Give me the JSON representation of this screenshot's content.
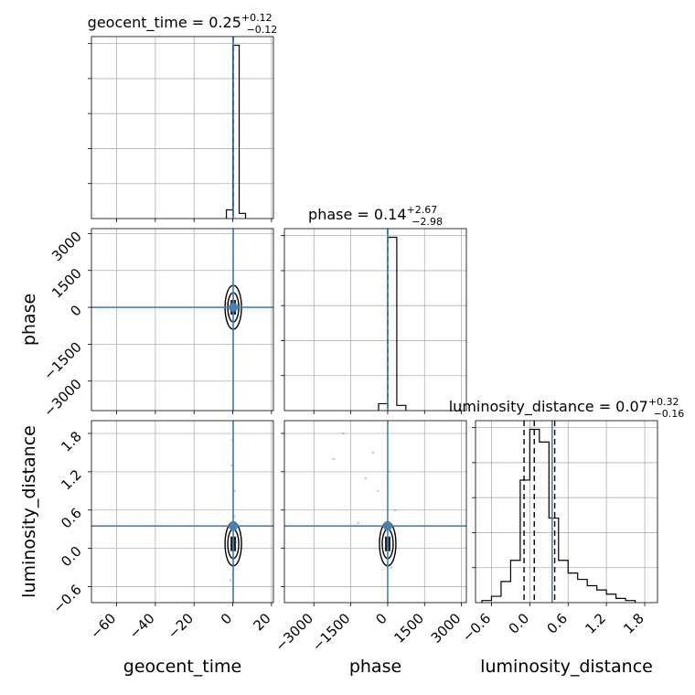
{
  "chart_data": {
    "type": "scatter",
    "variant": "corner-plot",
    "parameters": [
      {
        "name": "geocent_time",
        "axis_label": "geocent_time",
        "median": 0.25,
        "plus": 0.12,
        "minus": 0.12,
        "title": {
          "main": "geocent_time = 0.25",
          "sup": "+0.12",
          "sub": "−0.12"
        },
        "range": [
          -73,
          21
        ],
        "ticks": [
          -60,
          -40,
          -20,
          0,
          20
        ],
        "tick_labels": [
          "−60",
          "−40",
          "−20",
          "0",
          "20"
        ],
        "injected_value": 0.25,
        "quantiles": [
          0.13,
          0.37
        ],
        "hist_bins": [
          -3.3,
          0,
          3.3,
          6.6
        ],
        "hist_counts": [
          0.05,
          1.0,
          0.03
        ]
      },
      {
        "name": "phase",
        "axis_label": "phase",
        "median": 0.14,
        "plus": 2.67,
        "minus": 2.98,
        "title": {
          "main": "phase = 0.14",
          "sup": "+2.67",
          "sub": "−2.98"
        },
        "range": [
          -4200,
          3200
        ],
        "ticks": [
          -3000,
          -1500,
          0,
          1500,
          3000
        ],
        "tick_labels": [
          "−3000",
          "−1500",
          "0",
          "1500",
          "3000"
        ],
        "injected_value": 0.0,
        "quantiles": [
          -2.84,
          2.81
        ],
        "hist_bins": [
          -370,
          0,
          370,
          740
        ],
        "hist_counts": [
          0.04,
          1.0,
          0.03
        ]
      },
      {
        "name": "luminosity_distance",
        "axis_label": "luminosity_distance",
        "median": 0.07,
        "plus": 0.32,
        "minus": 0.16,
        "title": {
          "main": "luminosity_distance = 0.07",
          "sup": "+0.32",
          "sub": "−0.16"
        },
        "range": [
          -0.85,
          2.0
        ],
        "ticks": [
          -0.6,
          0.0,
          0.6,
          1.2,
          1.8
        ],
        "tick_labels": [
          "−0.6",
          "0.0",
          "0.6",
          "1.2",
          "1.8"
        ],
        "injected_value": 0.35,
        "quantiles": [
          -0.09,
          0.07,
          0.39
        ],
        "hist_bins": [
          -0.75,
          -0.6,
          -0.45,
          -0.3,
          -0.15,
          0.0,
          0.15,
          0.3,
          0.45,
          0.6,
          0.75,
          0.9,
          1.05,
          1.2,
          1.35,
          1.5,
          1.65
        ],
        "hist_counts": [
          0.01,
          0.03,
          0.1,
          0.2,
          0.58,
          0.82,
          0.76,
          0.4,
          0.2,
          0.14,
          0.11,
          0.08,
          0.06,
          0.04,
          0.02,
          0.01
        ]
      }
    ],
    "joint_scatter": {
      "phase_vs_geocent_time": {
        "x": [
          -3,
          -1,
          0,
          0.5,
          1,
          2,
          -2,
          0.2,
          3,
          -0.5
        ],
        "y": [
          150,
          -80,
          0,
          220,
          -200,
          400,
          -350,
          60,
          120,
          -40
        ]
      },
      "luminosity_distance_vs_geocent_time": {
        "x": [
          -1,
          0,
          0.5,
          1,
          -0.5,
          0.2,
          0.8,
          -0.3,
          1.5,
          -1.2
        ],
        "y": [
          0.05,
          -0.4,
          0.3,
          0.9,
          1.3,
          -0.2,
          0.5,
          1.7,
          0.1,
          -0.5
        ]
      },
      "luminosity_distance_vs_phase": {
        "x": [
          -2200,
          -1800,
          -900,
          -400,
          0,
          150,
          300,
          -600,
          -1200,
          50
        ],
        "y": [
          1.4,
          1.8,
          1.1,
          0.9,
          0.1,
          -0.3,
          0.6,
          1.5,
          0.4,
          1.2
        ]
      }
    },
    "grid": true,
    "legend": "none"
  },
  "colors": {
    "truth": "#4682b4",
    "histogram": "#000000",
    "contour": "#000000",
    "scatter": "#808080",
    "grid": "#b0b0b0"
  }
}
